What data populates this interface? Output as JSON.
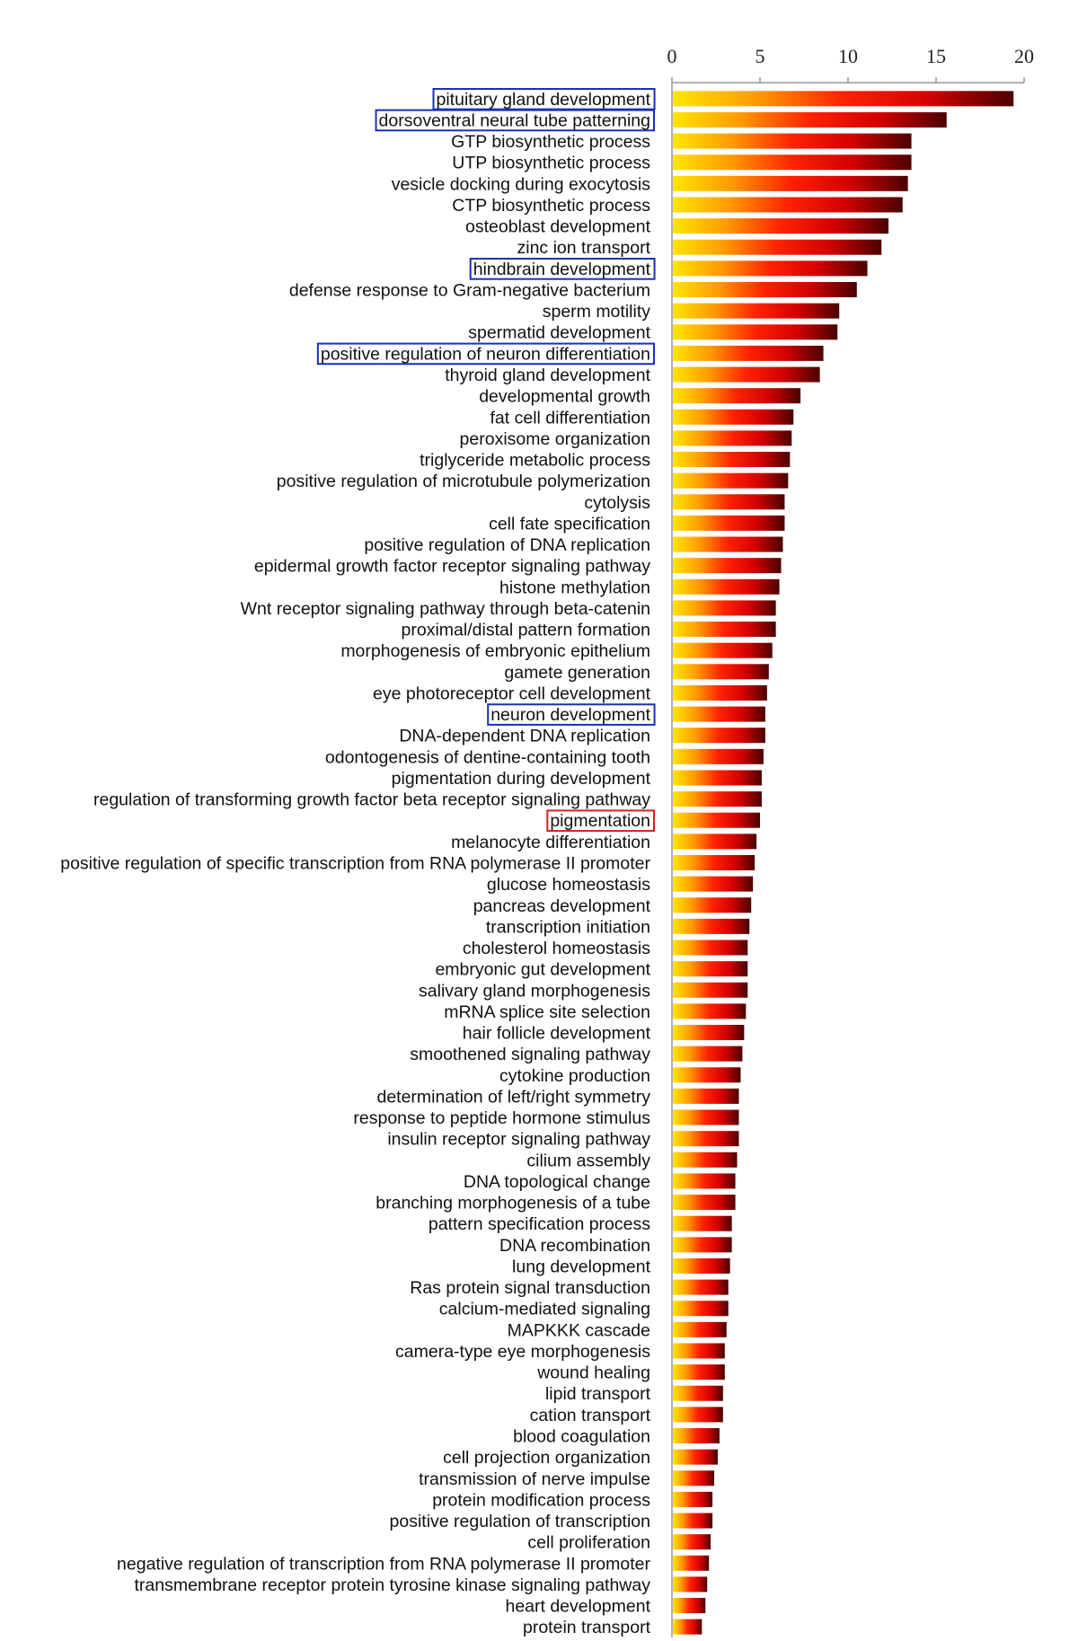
{
  "chart_data": {
    "type": "bar",
    "orientation": "horizontal",
    "title": "",
    "xlabel": "",
    "ylabel": "",
    "xlim": [
      0,
      20
    ],
    "x_ticks": [
      0,
      5,
      10,
      15,
      20
    ],
    "x_tick_labels": [
      "0",
      "5",
      "10",
      "15",
      "20"
    ],
    "x_axis_position": "top",
    "grid": false,
    "legend": "none",
    "bar_gradient": [
      "#ffe600",
      "#ff9900",
      "#ff2200",
      "#d40000",
      "#4a0000"
    ],
    "highlight_colors": {
      "blue": "#1a2fb8",
      "red": "#d42020"
    },
    "categories": [
      "pituitary gland development",
      "dorsoventral neural tube patterning",
      "GTP biosynthetic process",
      "UTP biosynthetic process",
      "vesicle docking during exocytosis",
      "CTP biosynthetic process",
      "osteoblast development",
      "zinc ion transport",
      "hindbrain development",
      "defense response to Gram-negative bacterium",
      "sperm motility",
      "spermatid development",
      "positive regulation of neuron differentiation",
      "thyroid gland development",
      "developmental growth",
      "fat cell differentiation",
      "peroxisome organization",
      "triglyceride metabolic process",
      "positive regulation of microtubule polymerization",
      "cytolysis",
      "cell fate specification",
      "positive regulation of DNA replication",
      "epidermal growth factor receptor signaling pathway",
      "histone methylation",
      "Wnt receptor signaling pathway through beta-catenin",
      "proximal/distal pattern formation",
      "morphogenesis of embryonic epithelium",
      "gamete generation",
      "eye photoreceptor cell development",
      "neuron development",
      "DNA-dependent DNA replication",
      "odontogenesis of dentine-containing tooth",
      "pigmentation during development",
      "regulation of transforming growth factor beta receptor signaling pathway",
      "pigmentation",
      "melanocyte differentiation",
      "positive regulation of specific transcription from RNA polymerase II promoter",
      "glucose homeostasis",
      "pancreas development",
      "transcription initiation",
      "cholesterol homeostasis",
      "embryonic gut development",
      "salivary gland morphogenesis",
      "mRNA splice site selection",
      "hair follicle development",
      "smoothened signaling pathway",
      "cytokine production",
      "determination of left/right symmetry",
      "response to peptide hormone stimulus",
      "insulin receptor signaling pathway",
      "cilium assembly",
      "DNA topological change",
      "branching morphogenesis of a tube",
      "pattern specification process",
      "DNA recombination",
      "lung development",
      "Ras protein signal transduction",
      "calcium-mediated signaling",
      "MAPKKK cascade",
      "camera-type eye morphogenesis",
      "wound healing",
      "lipid transport",
      "cation transport",
      "blood coagulation",
      "cell projection organization",
      "transmission of nerve impulse",
      "protein modification process",
      "positive regulation of transcription",
      "cell proliferation",
      "negative regulation of transcription from RNA polymerase II promoter",
      "transmembrane receptor protein tyrosine kinase signaling pathway",
      "heart development",
      "protein transport"
    ],
    "values": [
      19.4,
      15.6,
      13.6,
      13.6,
      13.4,
      13.1,
      12.3,
      11.9,
      11.1,
      10.5,
      9.5,
      9.4,
      8.6,
      8.4,
      7.3,
      6.9,
      6.8,
      6.7,
      6.6,
      6.4,
      6.4,
      6.3,
      6.2,
      6.1,
      5.9,
      5.9,
      5.7,
      5.5,
      5.4,
      5.3,
      5.3,
      5.2,
      5.1,
      5.1,
      5.0,
      4.8,
      4.7,
      4.6,
      4.5,
      4.4,
      4.3,
      4.3,
      4.3,
      4.2,
      4.1,
      4.0,
      3.9,
      3.8,
      3.8,
      3.8,
      3.7,
      3.6,
      3.6,
      3.4,
      3.4,
      3.3,
      3.2,
      3.2,
      3.1,
      3.0,
      3.0,
      2.9,
      2.9,
      2.7,
      2.6,
      2.4,
      2.3,
      2.3,
      2.2,
      2.1,
      2.0,
      1.9,
      1.7
    ],
    "highlighted": [
      {
        "category": "pituitary gland development",
        "color": "blue"
      },
      {
        "category": "dorsoventral neural tube patterning",
        "color": "blue"
      },
      {
        "category": "hindbrain development",
        "color": "blue"
      },
      {
        "category": "positive regulation of neuron differentiation",
        "color": "blue"
      },
      {
        "category": "neuron development",
        "color": "blue"
      },
      {
        "category": "pigmentation",
        "color": "red"
      }
    ]
  }
}
